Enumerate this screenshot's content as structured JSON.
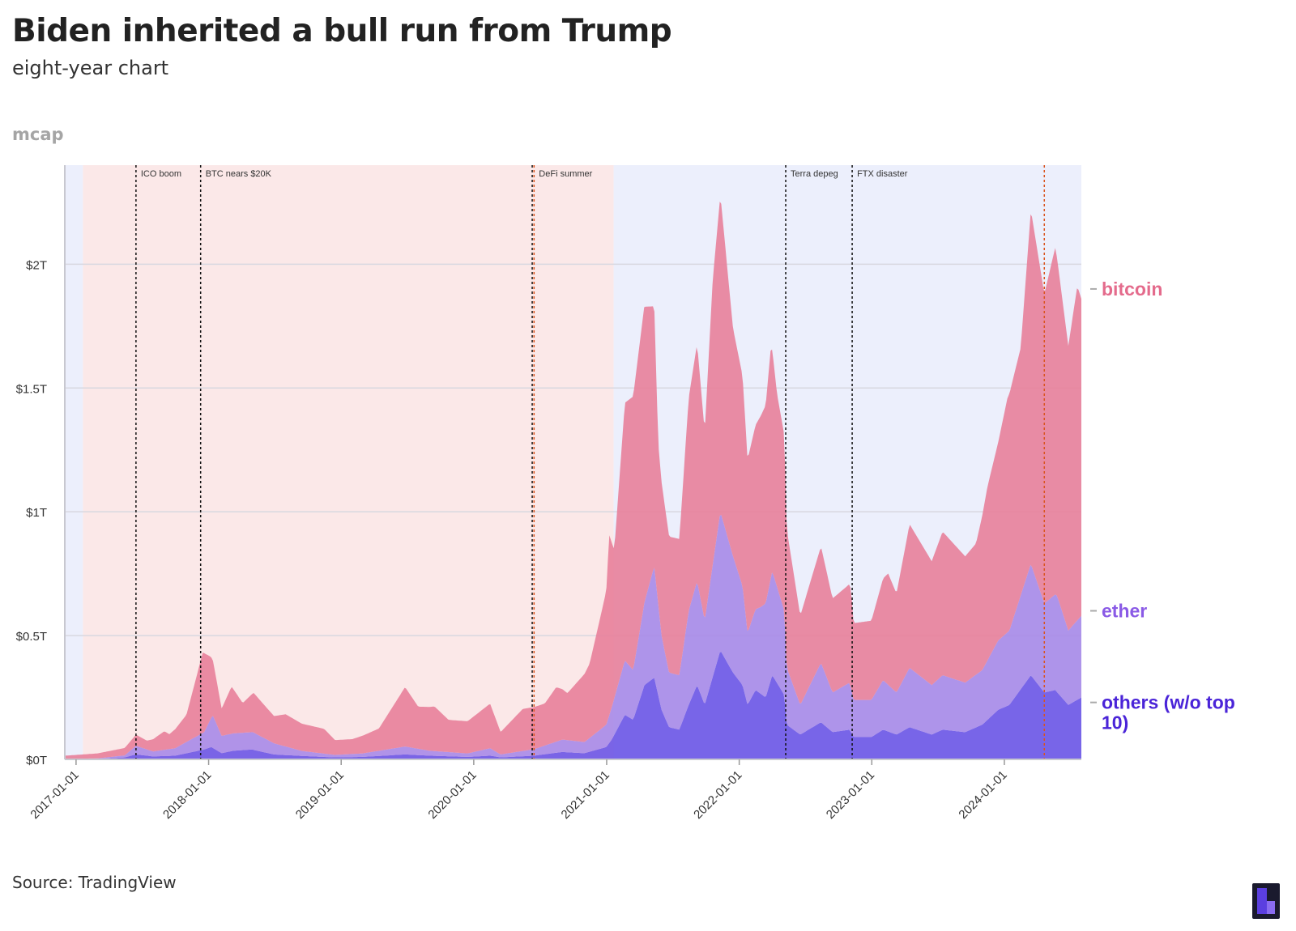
{
  "header": {
    "title": "Biden inherited a bull run from Trump",
    "subtitle": "eight-year chart",
    "unit_label": "mcap"
  },
  "footer": {
    "source": "Source: TradingView",
    "logo_icon": "brand-logo-icon"
  },
  "colors": {
    "bitcoin": "#e8809a",
    "ether": "#a78ae8",
    "others": "#6b55e6",
    "trump_band": "#fbe8e8",
    "biden_band": "#eceffc",
    "bitcoin_label": "#e46b8c",
    "ether_label": "#8a5ae6",
    "others_label": "#4a24d8"
  },
  "chart_data": {
    "type": "area",
    "stacked": true,
    "x_type": "date",
    "xlim": [
      "2016-12-01",
      "2024-07-31"
    ],
    "ylim": [
      0,
      2.4
    ],
    "y_unit": "trillion USD",
    "yticks": [
      {
        "value": 0,
        "label": "$0T"
      },
      {
        "value": 0.5,
        "label": "$0.5T"
      },
      {
        "value": 1,
        "label": "$1T"
      },
      {
        "value": 1.5,
        "label": "$1.5T"
      },
      {
        "value": 2,
        "label": "$2T"
      }
    ],
    "xticks": [
      "2017-01-01",
      "2018-01-01",
      "2019-01-01",
      "2020-01-01",
      "2021-01-01",
      "2022-01-01",
      "2023-01-01",
      "2024-01-01"
    ],
    "grid": "horizontal",
    "background_periods": [
      {
        "start": "2016-12-01",
        "end": "2017-01-20",
        "administration": "biden"
      },
      {
        "start": "2017-01-20",
        "end": "2021-01-20",
        "administration": "trump"
      },
      {
        "start": "2021-01-20",
        "end": "2024-07-31",
        "administration": "biden"
      }
    ],
    "events": [
      {
        "date": "2017-06-15",
        "label": "ICO boom",
        "style": "black"
      },
      {
        "date": "2017-12-10",
        "label": "BTC nears $20K",
        "style": "black"
      },
      {
        "date": "2020-06-10",
        "label": "",
        "style": "black"
      },
      {
        "date": "2020-06-15",
        "label": "DeFi summer",
        "style": "orange"
      },
      {
        "date": "2022-05-09",
        "label": "Terra depeg",
        "style": "black"
      },
      {
        "date": "2022-11-08",
        "label": "FTX disaster",
        "style": "black"
      },
      {
        "date": "2024-04-20",
        "label": "",
        "style": "orange"
      }
    ],
    "series_order": [
      "others (w/o top 10)",
      "ether",
      "bitcoin"
    ],
    "series": [
      {
        "name": "others (w/o top 10)",
        "points": [
          [
            "2016-12-01",
            0.001
          ],
          [
            "2017-03-01",
            0.002
          ],
          [
            "2017-05-15",
            0.008
          ],
          [
            "2017-06-15",
            0.02
          ],
          [
            "2017-08-01",
            0.012
          ],
          [
            "2017-10-01",
            0.015
          ],
          [
            "2017-12-20",
            0.04
          ],
          [
            "2018-01-08",
            0.05
          ],
          [
            "2018-02-06",
            0.025
          ],
          [
            "2018-03-10",
            0.035
          ],
          [
            "2018-04-30",
            0.04
          ],
          [
            "2018-06-30",
            0.02
          ],
          [
            "2018-09-01",
            0.015
          ],
          [
            "2018-12-15",
            0.008
          ],
          [
            "2019-03-01",
            0.01
          ],
          [
            "2019-06-26",
            0.02
          ],
          [
            "2019-09-01",
            0.015
          ],
          [
            "2019-12-15",
            0.01
          ],
          [
            "2020-02-15",
            0.015
          ],
          [
            "2020-03-15",
            0.008
          ],
          [
            "2020-06-15",
            0.015
          ],
          [
            "2020-09-01",
            0.03
          ],
          [
            "2020-11-01",
            0.025
          ],
          [
            "2020-12-31",
            0.05
          ],
          [
            "2021-01-15",
            0.08
          ],
          [
            "2021-02-20",
            0.18
          ],
          [
            "2021-03-15",
            0.16
          ],
          [
            "2021-04-15",
            0.3
          ],
          [
            "2021-05-12",
            0.33
          ],
          [
            "2021-06-01",
            0.2
          ],
          [
            "2021-06-22",
            0.13
          ],
          [
            "2021-07-20",
            0.12
          ],
          [
            "2021-08-15",
            0.22
          ],
          [
            "2021-09-07",
            0.3
          ],
          [
            "2021-09-28",
            0.22
          ],
          [
            "2021-11-10",
            0.44
          ],
          [
            "2021-12-15",
            0.35
          ],
          [
            "2022-01-10",
            0.3
          ],
          [
            "2022-01-24",
            0.22
          ],
          [
            "2022-02-15",
            0.28
          ],
          [
            "2022-03-15",
            0.25
          ],
          [
            "2022-04-02",
            0.34
          ],
          [
            "2022-05-05",
            0.26
          ],
          [
            "2022-05-12",
            0.14
          ],
          [
            "2022-06-18",
            0.1
          ],
          [
            "2022-08-14",
            0.15
          ],
          [
            "2022-09-15",
            0.11
          ],
          [
            "2022-11-01",
            0.12
          ],
          [
            "2022-11-12",
            0.09
          ],
          [
            "2022-12-31",
            0.09
          ],
          [
            "2023-02-01",
            0.12
          ],
          [
            "2023-03-10",
            0.1
          ],
          [
            "2023-04-15",
            0.13
          ],
          [
            "2023-06-15",
            0.1
          ],
          [
            "2023-07-15",
            0.12
          ],
          [
            "2023-09-15",
            0.11
          ],
          [
            "2023-11-01",
            0.14
          ],
          [
            "2023-12-15",
            0.2
          ],
          [
            "2024-01-15",
            0.22
          ],
          [
            "2024-03-14",
            0.34
          ],
          [
            "2024-04-20",
            0.27
          ],
          [
            "2024-05-20",
            0.28
          ],
          [
            "2024-06-25",
            0.22
          ],
          [
            "2024-07-31",
            0.25
          ]
        ]
      },
      {
        "name": "ether",
        "points": [
          [
            "2016-12-01",
            0.0008
          ],
          [
            "2017-03-01",
            0.002
          ],
          [
            "2017-05-15",
            0.008
          ],
          [
            "2017-06-15",
            0.035
          ],
          [
            "2017-08-01",
            0.02
          ],
          [
            "2017-10-01",
            0.03
          ],
          [
            "2017-12-20",
            0.07
          ],
          [
            "2018-01-13",
            0.13
          ],
          [
            "2018-02-06",
            0.07
          ],
          [
            "2018-03-10",
            0.07
          ],
          [
            "2018-05-05",
            0.07
          ],
          [
            "2018-06-30",
            0.045
          ],
          [
            "2018-09-15",
            0.02
          ],
          [
            "2018-12-15",
            0.01
          ],
          [
            "2019-03-01",
            0.014
          ],
          [
            "2019-06-26",
            0.032
          ],
          [
            "2019-09-01",
            0.02
          ],
          [
            "2019-12-15",
            0.014
          ],
          [
            "2020-02-15",
            0.03
          ],
          [
            "2020-03-15",
            0.012
          ],
          [
            "2020-06-15",
            0.026
          ],
          [
            "2020-09-01",
            0.05
          ],
          [
            "2020-11-01",
            0.045
          ],
          [
            "2020-12-31",
            0.09
          ],
          [
            "2021-01-15",
            0.13
          ],
          [
            "2021-02-20",
            0.22
          ],
          [
            "2021-03-15",
            0.2
          ],
          [
            "2021-05-12",
            0.45
          ],
          [
            "2021-06-01",
            0.3
          ],
          [
            "2021-06-22",
            0.22
          ],
          [
            "2021-07-20",
            0.22
          ],
          [
            "2021-08-15",
            0.38
          ],
          [
            "2021-09-07",
            0.42
          ],
          [
            "2021-09-28",
            0.34
          ],
          [
            "2021-11-10",
            0.56
          ],
          [
            "2021-12-15",
            0.47
          ],
          [
            "2022-01-10",
            0.4
          ],
          [
            "2022-01-24",
            0.29
          ],
          [
            "2022-03-01",
            0.35
          ],
          [
            "2022-04-02",
            0.42
          ],
          [
            "2022-05-05",
            0.34
          ],
          [
            "2022-05-12",
            0.23
          ],
          [
            "2022-06-18",
            0.12
          ],
          [
            "2022-08-14",
            0.24
          ],
          [
            "2022-09-15",
            0.16
          ],
          [
            "2022-11-01",
            0.19
          ],
          [
            "2022-11-12",
            0.15
          ],
          [
            "2022-12-31",
            0.15
          ],
          [
            "2023-02-01",
            0.2
          ],
          [
            "2023-03-10",
            0.17
          ],
          [
            "2023-04-15",
            0.24
          ],
          [
            "2023-06-15",
            0.2
          ],
          [
            "2023-07-15",
            0.22
          ],
          [
            "2023-09-15",
            0.2
          ],
          [
            "2023-11-01",
            0.22
          ],
          [
            "2023-12-15",
            0.28
          ],
          [
            "2024-01-15",
            0.3
          ],
          [
            "2024-03-14",
            0.45
          ],
          [
            "2024-04-20",
            0.36
          ],
          [
            "2024-05-25",
            0.39
          ],
          [
            "2024-06-25",
            0.3
          ],
          [
            "2024-07-31",
            0.33
          ]
        ]
      },
      {
        "name": "bitcoin",
        "points": [
          [
            "2016-12-01",
            0.013
          ],
          [
            "2017-03-01",
            0.02
          ],
          [
            "2017-05-15",
            0.03
          ],
          [
            "2017-06-15",
            0.045
          ],
          [
            "2017-07-15",
            0.035
          ],
          [
            "2017-09-01",
            0.075
          ],
          [
            "2017-09-15",
            0.06
          ],
          [
            "2017-11-01",
            0.11
          ],
          [
            "2017-12-17",
            0.33
          ],
          [
            "2018-01-07",
            0.25
          ],
          [
            "2018-02-06",
            0.11
          ],
          [
            "2018-03-05",
            0.19
          ],
          [
            "2018-04-05",
            0.12
          ],
          [
            "2018-05-05",
            0.16
          ],
          [
            "2018-06-30",
            0.11
          ],
          [
            "2018-08-01",
            0.13
          ],
          [
            "2018-09-15",
            0.11
          ],
          [
            "2018-11-15",
            0.1
          ],
          [
            "2018-12-15",
            0.06
          ],
          [
            "2019-02-01",
            0.06
          ],
          [
            "2019-04-15",
            0.09
          ],
          [
            "2019-06-26",
            0.24
          ],
          [
            "2019-08-01",
            0.17
          ],
          [
            "2019-09-15",
            0.18
          ],
          [
            "2019-10-24",
            0.13
          ],
          [
            "2019-12-15",
            0.13
          ],
          [
            "2020-02-15",
            0.18
          ],
          [
            "2020-03-15",
            0.09
          ],
          [
            "2020-05-15",
            0.17
          ],
          [
            "2020-07-15",
            0.17
          ],
          [
            "2020-08-15",
            0.22
          ],
          [
            "2020-09-15",
            0.19
          ],
          [
            "2020-11-15",
            0.3
          ],
          [
            "2020-12-31",
            0.54
          ],
          [
            "2021-01-08",
            0.73
          ],
          [
            "2021-01-22",
            0.6
          ],
          [
            "2021-02-20",
            1.04
          ],
          [
            "2021-03-13",
            1.1
          ],
          [
            "2021-04-14",
            1.2
          ],
          [
            "2021-05-12",
            1.05
          ],
          [
            "2021-05-23",
            0.65
          ],
          [
            "2021-06-22",
            0.55
          ],
          [
            "2021-07-20",
            0.55
          ],
          [
            "2021-08-15",
            0.86
          ],
          [
            "2021-09-07",
            0.96
          ],
          [
            "2021-09-28",
            0.76
          ],
          [
            "2021-10-20",
            1.15
          ],
          [
            "2021-11-10",
            1.28
          ],
          [
            "2021-12-15",
            0.92
          ],
          [
            "2022-01-10",
            0.85
          ],
          [
            "2022-01-24",
            0.7
          ],
          [
            "2022-03-15",
            0.8
          ],
          [
            "2022-03-29",
            0.93
          ],
          [
            "2022-04-15",
            0.78
          ],
          [
            "2022-05-05",
            0.71
          ],
          [
            "2022-05-12",
            0.56
          ],
          [
            "2022-06-18",
            0.36
          ],
          [
            "2022-08-14",
            0.47
          ],
          [
            "2022-09-15",
            0.38
          ],
          [
            "2022-11-05",
            0.4
          ],
          [
            "2022-11-12",
            0.31
          ],
          [
            "2022-12-31",
            0.32
          ],
          [
            "2023-02-15",
            0.45
          ],
          [
            "2023-03-10",
            0.4
          ],
          [
            "2023-04-15",
            0.58
          ],
          [
            "2023-06-15",
            0.5
          ],
          [
            "2023-07-15",
            0.58
          ],
          [
            "2023-09-15",
            0.51
          ],
          [
            "2023-10-15",
            0.53
          ],
          [
            "2023-11-15",
            0.7
          ],
          [
            "2023-12-15",
            0.8
          ],
          [
            "2024-01-10",
            0.95
          ],
          [
            "2024-02-15",
            1.0
          ],
          [
            "2024-03-14",
            1.43
          ],
          [
            "2024-04-20",
            1.25
          ],
          [
            "2024-05-20",
            1.4
          ],
          [
            "2024-06-25",
            1.15
          ],
          [
            "2024-07-20",
            1.35
          ],
          [
            "2024-07-31",
            1.28
          ]
        ]
      }
    ],
    "legend": [
      {
        "name": "bitcoin",
        "color_key": "bitcoin_label",
        "anchor_value": 1.9
      },
      {
        "name": "ether",
        "color_key": "ether_label",
        "anchor_value": 0.6
      },
      {
        "name": "others (w/o top",
        "name_line2": "10)",
        "color_key": "others_label",
        "anchor_value": 0.23
      }
    ]
  }
}
